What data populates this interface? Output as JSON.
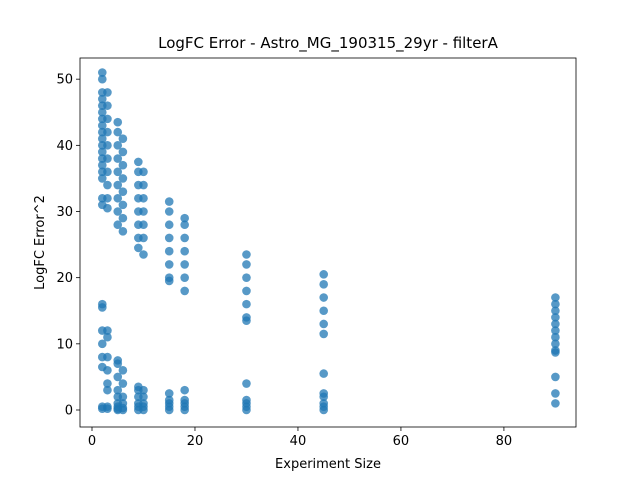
{
  "chart_data": {
    "type": "scatter",
    "title": "LogFC Error - Astro_MG_190315_29yr - filterA",
    "x_label": "Experiment Size",
    "y_label": "LogFC Error^2",
    "color": "#1f77b4",
    "xlim": [
      -2.33,
      94
    ],
    "ylim": [
      -2.57,
      53.2
    ],
    "xticks": [
      0,
      20,
      40,
      60,
      80
    ],
    "yticks": [
      0,
      10,
      20,
      30,
      40,
      50
    ],
    "x": [
      2,
      2,
      2,
      2,
      2,
      2,
      2,
      2,
      2,
      2,
      2,
      2,
      2,
      2,
      2,
      2,
      2,
      2,
      2,
      2,
      2,
      2,
      2,
      2,
      2,
      2,
      3,
      3,
      3,
      3,
      3,
      3,
      3,
      3,
      3,
      3,
      3,
      3,
      3,
      3,
      3,
      3,
      3,
      3,
      5,
      5,
      5,
      5,
      5,
      5,
      5,
      5,
      5,
      5,
      5,
      5,
      5,
      5,
      5,
      5,
      5,
      5,
      6,
      6,
      6,
      6,
      6,
      6,
      6,
      6,
      6,
      6,
      6,
      6,
      6,
      6,
      9,
      9,
      9,
      9,
      9,
      9,
      9,
      9,
      9,
      9,
      9,
      9,
      9,
      9,
      10,
      10,
      10,
      10,
      10,
      10,
      10,
      10,
      10,
      10,
      10,
      10,
      15,
      15,
      15,
      15,
      15,
      15,
      15,
      15,
      15,
      15,
      15,
      15,
      15,
      18,
      18,
      18,
      18,
      18,
      18,
      18,
      18,
      18,
      18,
      18,
      18,
      30,
      30,
      30,
      30,
      30,
      30,
      30,
      30,
      30,
      30,
      30,
      30,
      45,
      45,
      45,
      45,
      45,
      45,
      45,
      45,
      45,
      45,
      45,
      45,
      90,
      90,
      90,
      90,
      90,
      90,
      90,
      90,
      90,
      90,
      90,
      90,
      90
    ],
    "values": [
      51,
      50,
      48,
      47,
      46,
      45,
      44,
      43,
      42,
      41,
      40,
      39,
      38,
      37,
      36,
      35,
      32,
      31,
      16,
      15.5,
      12,
      10,
      8,
      6.5,
      0.5,
      0.2,
      48,
      46,
      44,
      42,
      40,
      38,
      36,
      34,
      32,
      30.5,
      12,
      11,
      8,
      6,
      4,
      3,
      0.5,
      0.2,
      43.5,
      42,
      40,
      38,
      36,
      34,
      32,
      30,
      28,
      7.5,
      7,
      5,
      3,
      2,
      1,
      0.5,
      0.2,
      0,
      41,
      39,
      37,
      35,
      33,
      31,
      29,
      27,
      6,
      4,
      2,
      1,
      0.3,
      0,
      37.5,
      36,
      34,
      32,
      30,
      28,
      26,
      24.5,
      3.5,
      3,
      2,
      1,
      0.5,
      0,
      36,
      34,
      32,
      30,
      28,
      26,
      23.5,
      3,
      2,
      1,
      0.5,
      0,
      31.5,
      30,
      28,
      26,
      24,
      22,
      20,
      19.5,
      2.5,
      1.5,
      1,
      0.5,
      0,
      29,
      28,
      26,
      24,
      22,
      20,
      18,
      3,
      1.5,
      1,
      0.5,
      0,
      23.5,
      22,
      20,
      18,
      16,
      14,
      13.5,
      4,
      1.5,
      1,
      0.5,
      0,
      20.5,
      19,
      17,
      15,
      13,
      11.5,
      5.5,
      2.5,
      2,
      1,
      0.5,
      0,
      17,
      16,
      15,
      14,
      13,
      12,
      11,
      10,
      9,
      8.7,
      5,
      2.5,
      1
    ]
  }
}
